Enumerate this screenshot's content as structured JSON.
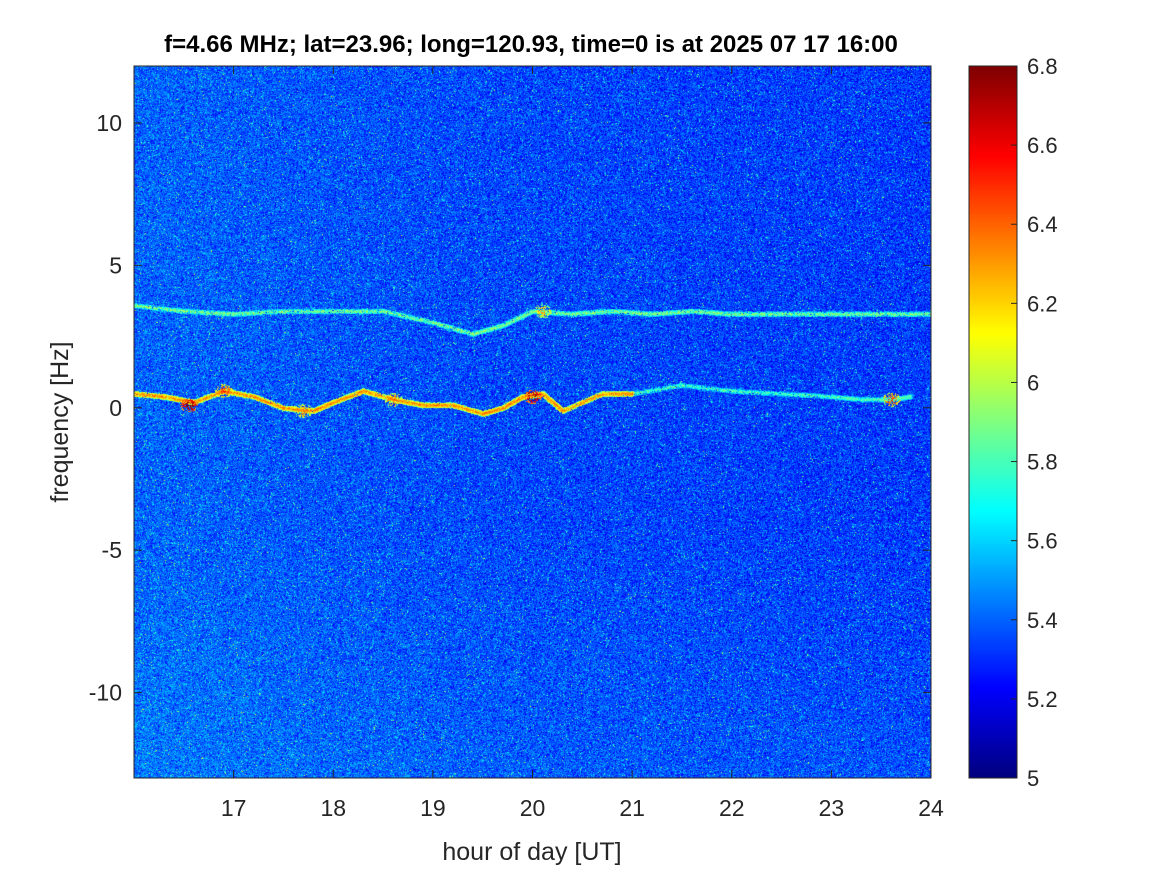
{
  "chart_data": {
    "type": "heatmap",
    "title": "f=4.66 MHz;  lat=23.96; long=120.93, time=0 is at 2025 07 17 16:00",
    "xlabel": "hour of day [UT]",
    "ylabel": "frequency [Hz]",
    "xlim": [
      16.0,
      24.0
    ],
    "ylim": [
      -13.0,
      12.0
    ],
    "x_ticks": [
      17,
      18,
      19,
      20,
      21,
      22,
      23,
      24
    ],
    "x_tick_labels": [
      "17",
      "18",
      "19",
      "20",
      "21",
      "22",
      "23",
      "24"
    ],
    "y_ticks": [
      10,
      5,
      0,
      -5,
      -10
    ],
    "y_tick_labels": [
      "10",
      "5",
      "0",
      "-5",
      "-10"
    ],
    "colorbar": {
      "colormap": "jet",
      "clim": [
        5.0,
        6.8
      ],
      "ticks": [
        6.8,
        6.6,
        6.4,
        6.2,
        6.0,
        5.8,
        5.6,
        5.4,
        5.2,
        5.0
      ],
      "tick_labels": [
        "6.8",
        "6.6",
        "6.4",
        "6.2",
        "6",
        "5.8",
        "5.6",
        "5.4",
        "5.2",
        "5"
      ]
    },
    "background_level": 5.35,
    "traces": [
      {
        "points": [
          [
            16.0,
            0.5
          ],
          [
            16.3,
            0.4
          ],
          [
            16.6,
            0.2
          ],
          [
            16.9,
            0.6
          ],
          [
            17.2,
            0.4
          ],
          [
            17.5,
            0.0
          ],
          [
            17.8,
            -0.1
          ],
          [
            18.0,
            0.2
          ],
          [
            18.3,
            0.6
          ],
          [
            18.6,
            0.3
          ],
          [
            18.9,
            0.1
          ],
          [
            19.2,
            0.1
          ],
          [
            19.5,
            -0.2
          ],
          [
            19.7,
            0.0
          ],
          [
            19.9,
            0.4
          ],
          [
            20.1,
            0.5
          ],
          [
            20.3,
            -0.1
          ],
          [
            20.7,
            0.5
          ],
          [
            21.0,
            0.5
          ]
        ],
        "level": 6.3
      },
      {
        "points": [
          [
            16.0,
            3.6
          ],
          [
            16.5,
            3.4
          ],
          [
            17.0,
            3.3
          ],
          [
            17.5,
            3.4
          ],
          [
            18.0,
            3.4
          ],
          [
            18.5,
            3.4
          ],
          [
            19.0,
            3.0
          ],
          [
            19.4,
            2.6
          ],
          [
            19.7,
            2.9
          ],
          [
            20.0,
            3.4
          ],
          [
            20.4,
            3.3
          ],
          [
            20.8,
            3.4
          ],
          [
            21.2,
            3.3
          ],
          [
            21.6,
            3.4
          ],
          [
            22.0,
            3.3
          ],
          [
            22.5,
            3.3
          ],
          [
            23.0,
            3.3
          ],
          [
            23.5,
            3.3
          ],
          [
            24.0,
            3.3
          ]
        ],
        "level": 5.9
      },
      {
        "points": [
          [
            21.0,
            0.5
          ],
          [
            21.5,
            0.8
          ],
          [
            22.0,
            0.6
          ],
          [
            22.5,
            0.5
          ],
          [
            23.0,
            0.4
          ],
          [
            23.3,
            0.3
          ],
          [
            23.6,
            0.3
          ],
          [
            23.8,
            0.4
          ]
        ],
        "level": 5.8
      }
    ],
    "hotspots": [
      {
        "x": 16.55,
        "y": 0.1,
        "level": 6.8
      },
      {
        "x": 16.9,
        "y": 0.6,
        "level": 6.5
      },
      {
        "x": 17.7,
        "y": -0.1,
        "level": 6.4
      },
      {
        "x": 18.6,
        "y": 0.3,
        "level": 6.4
      },
      {
        "x": 20.0,
        "y": 0.4,
        "level": 6.8
      },
      {
        "x": 20.1,
        "y": 3.4,
        "level": 6.3
      },
      {
        "x": 23.6,
        "y": 0.3,
        "level": 6.5
      }
    ]
  }
}
